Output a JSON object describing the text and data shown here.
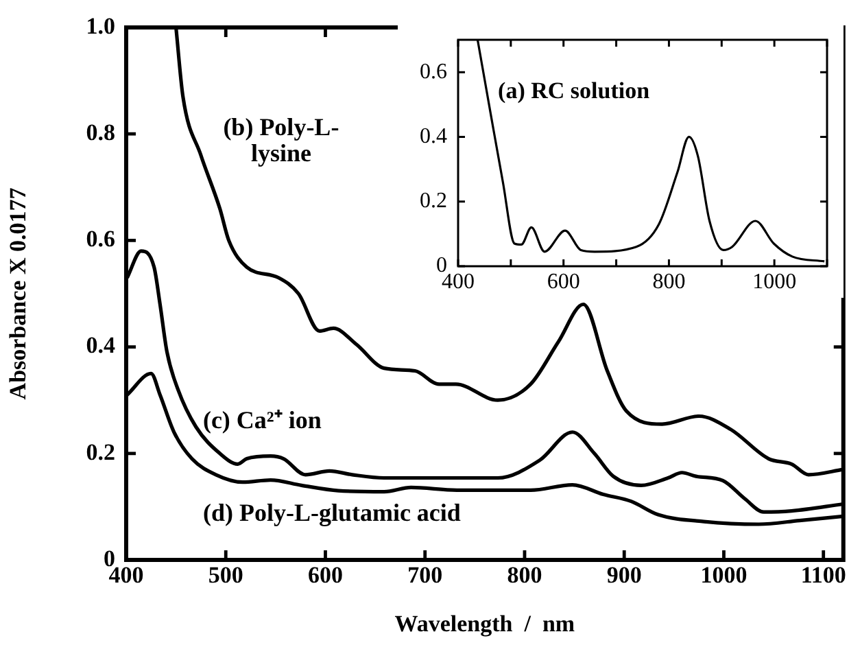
{
  "chart_data": [
    {
      "type": "line",
      "xlabel": "Wavelength  /  nm",
      "ylabel": "Absorbance X 0.0177",
      "xlim": [
        400,
        1120
      ],
      "ylim": [
        0,
        1
      ],
      "xticks": [
        400,
        500,
        600,
        700,
        800,
        900,
        1000,
        1100
      ],
      "yticks": [
        0,
        0.2,
        0.4,
        0.6,
        0.8,
        {
          "value": 1,
          "label": "1.0"
        }
      ],
      "grid": false,
      "legend": false,
      "marker": "none",
      "line_style": "solid",
      "series": [
        {
          "name": "(b) Poly-L-lysine",
          "color": "#000000",
          "x": [
            450,
            457,
            475,
            494,
            503,
            521,
            553,
            573,
            594,
            608,
            631,
            659,
            690,
            714,
            731,
            773,
            806,
            834,
            859,
            883,
            902,
            938,
            975,
            1007,
            1045,
            1068,
            1085,
            1120
          ],
          "values": [
            1.0,
            0.87,
            0.76,
            0.66,
            0.6,
            0.55,
            0.53,
            0.5,
            0.43,
            0.435,
            0.405,
            0.36,
            0.355,
            0.33,
            0.33,
            0.3,
            0.33,
            0.41,
            0.48,
            0.355,
            0.28,
            0.255,
            0.27,
            0.245,
            0.19,
            0.18,
            0.16,
            0.17
          ]
        },
        {
          "name": "(c) Ca²⁺ ion",
          "color": "#000000",
          "x": [
            401,
            415,
            428,
            434,
            441,
            452,
            470,
            494,
            512,
            521,
            545,
            558,
            580,
            604,
            627,
            659,
            686,
            732,
            773,
            815,
            848,
            870,
            889,
            917,
            944,
            958,
            972,
            999,
            1021,
            1040,
            1068,
            1120
          ],
          "values": [
            0.53,
            0.58,
            0.55,
            0.48,
            0.39,
            0.32,
            0.25,
            0.2,
            0.18,
            0.19,
            0.195,
            0.19,
            0.16,
            0.167,
            0.16,
            0.154,
            0.154,
            0.154,
            0.154,
            0.187,
            0.24,
            0.2,
            0.157,
            0.14,
            0.154,
            0.164,
            0.157,
            0.149,
            0.115,
            0.09,
            0.092,
            0.105
          ]
        },
        {
          "name": "(d) Poly-L-glutamic acid",
          "color": "#000000",
          "x": [
            401,
            425,
            434,
            448,
            466,
            490,
            517,
            545,
            576,
            613,
            659,
            686,
            732,
            806,
            848,
            879,
            907,
            934,
            980,
            1035,
            1076,
            1120
          ],
          "values": [
            0.31,
            0.35,
            0.31,
            0.24,
            0.19,
            0.16,
            0.146,
            0.15,
            0.14,
            0.13,
            0.128,
            0.136,
            0.131,
            0.131,
            0.141,
            0.123,
            0.11,
            0.085,
            0.072,
            0.067,
            0.074,
            0.082
          ]
        }
      ]
    },
    {
      "type": "line",
      "xlim": [
        400,
        1100
      ],
      "ylim": [
        0,
        0.7
      ],
      "xticks": [
        400,
        {
          "value": 500,
          "label": null
        },
        600,
        {
          "value": 700,
          "label": null
        },
        800,
        {
          "value": 900,
          "label": null
        },
        1000,
        {
          "value": 1100,
          "label": null
        }
      ],
      "yticks": [
        0,
        0.2,
        0.4,
        0.6
      ],
      "grid": false,
      "legend": false,
      "marker": "none",
      "line_style": "solid",
      "series": [
        {
          "name": "(a) RC solution",
          "color": "#000000",
          "x": [
            437,
            463,
            485,
            507,
            520,
            539,
            564,
            603,
            633,
            659,
            738,
            781,
            816,
            838,
            855,
            877,
            903,
            920,
            964,
            999,
            1034,
            1095
          ],
          "values": [
            0.7,
            0.46,
            0.26,
            0.07,
            0.067,
            0.12,
            0.045,
            0.11,
            0.05,
            0.045,
            0.06,
            0.13,
            0.29,
            0.4,
            0.34,
            0.14,
            0.05,
            0.06,
            0.14,
            0.07,
            0.03,
            0.015
          ]
        }
      ]
    }
  ]
}
